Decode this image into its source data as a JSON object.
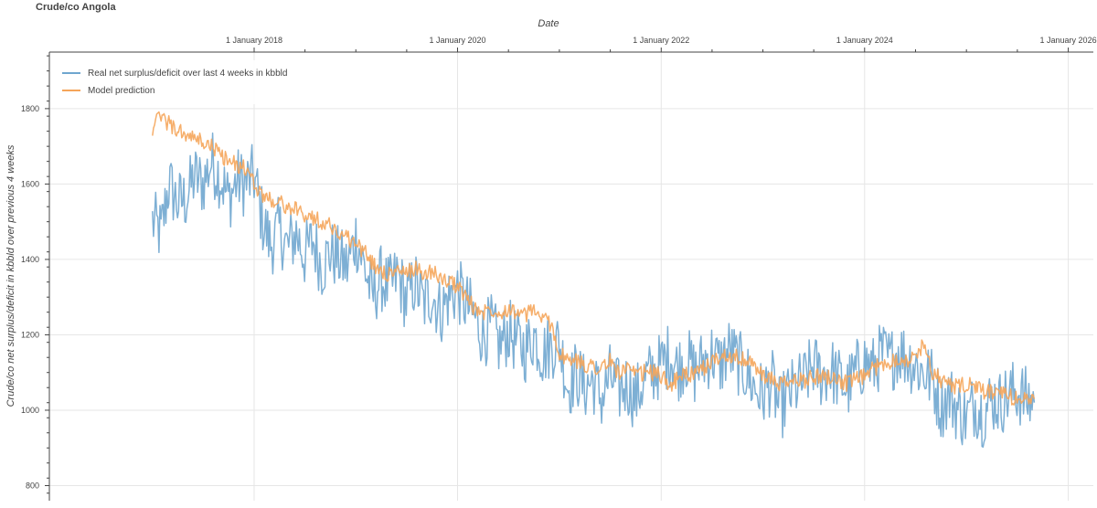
{
  "chart_data": {
    "type": "line",
    "title": "Crude/co Angola",
    "xlabel": "Date",
    "ylabel": "Crude/co net surplus/deficit in kbbld over previous 4 weeks",
    "x_axis_position": "top",
    "x_ticks": [
      {
        "date": "2018-01-01",
        "label": "1 January 2018"
      },
      {
        "date": "2020-01-01",
        "label": "1 January 2020"
      },
      {
        "date": "2022-01-01",
        "label": "1 January 2022"
      },
      {
        "date": "2024-01-01",
        "label": "1 January 2024"
      },
      {
        "date": "2026-01-01",
        "label": "1 January 2026"
      }
    ],
    "xlim": [
      "2015-12-28",
      "2026-04-01"
    ],
    "y_ticks": [
      800,
      1000,
      1200,
      1400,
      1600,
      1800
    ],
    "ylim": [
      760,
      1950
    ],
    "grid": true,
    "legend_position": "top-left",
    "series": [
      {
        "name": "Real net surplus/deficit over last 4 weeks in kbbld",
        "color": "#6fa6cf",
        "points": [
          [
            "2017-01-01",
            1500
          ],
          [
            "2017-02-01",
            1470
          ],
          [
            "2017-03-01",
            1600
          ],
          [
            "2017-04-01",
            1550
          ],
          [
            "2017-05-01",
            1560
          ],
          [
            "2017-06-01",
            1620
          ],
          [
            "2017-07-01",
            1600
          ],
          [
            "2017-08-01",
            1660
          ],
          [
            "2017-09-01",
            1620
          ],
          [
            "2017-10-01",
            1560
          ],
          [
            "2017-11-01",
            1610
          ],
          [
            "2017-12-01",
            1600
          ],
          [
            "2018-01-01",
            1620
          ],
          [
            "2018-02-01",
            1500
          ],
          [
            "2018-03-01",
            1440
          ],
          [
            "2018-04-01",
            1480
          ],
          [
            "2018-05-01",
            1430
          ],
          [
            "2018-06-01",
            1470
          ],
          [
            "2018-07-01",
            1410
          ],
          [
            "2018-08-01",
            1450
          ],
          [
            "2018-09-01",
            1380
          ],
          [
            "2018-10-01",
            1420
          ],
          [
            "2018-11-01",
            1400
          ],
          [
            "2018-12-01",
            1380
          ],
          [
            "2019-01-01",
            1460
          ],
          [
            "2019-02-01",
            1380
          ],
          [
            "2019-03-01",
            1300
          ],
          [
            "2019-04-01",
            1350
          ],
          [
            "2019-05-01",
            1320
          ],
          [
            "2019-06-01",
            1360
          ],
          [
            "2019-07-01",
            1290
          ],
          [
            "2019-08-01",
            1340
          ],
          [
            "2019-09-01",
            1280
          ],
          [
            "2019-10-01",
            1310
          ],
          [
            "2019-11-01",
            1260
          ],
          [
            "2019-12-01",
            1300
          ],
          [
            "2020-01-01",
            1320
          ],
          [
            "2020-02-01",
            1280
          ],
          [
            "2020-03-01",
            1250
          ],
          [
            "2020-04-01",
            1200
          ],
          [
            "2020-05-01",
            1220
          ],
          [
            "2020-06-01",
            1170
          ],
          [
            "2020-07-01",
            1210
          ],
          [
            "2020-08-01",
            1180
          ],
          [
            "2020-09-01",
            1160
          ],
          [
            "2020-10-01",
            1200
          ],
          [
            "2020-11-01",
            1150
          ],
          [
            "2020-12-01",
            1170
          ],
          [
            "2021-01-01",
            1180
          ],
          [
            "2021-02-01",
            1060
          ],
          [
            "2021-03-01",
            1100
          ],
          [
            "2021-04-01",
            1060
          ],
          [
            "2021-05-01",
            1080
          ],
          [
            "2021-06-01",
            1030
          ],
          [
            "2021-07-01",
            1090
          ],
          [
            "2021-08-01",
            1050
          ],
          [
            "2021-09-01",
            1070
          ],
          [
            "2021-10-01",
            1030
          ],
          [
            "2021-11-01",
            1080
          ],
          [
            "2021-12-01",
            1100
          ],
          [
            "2022-01-01",
            1120
          ],
          [
            "2022-02-01",
            1150
          ],
          [
            "2022-03-01",
            1110
          ],
          [
            "2022-04-01",
            1140
          ],
          [
            "2022-05-01",
            1100
          ],
          [
            "2022-06-01",
            1130
          ],
          [
            "2022-07-01",
            1150
          ],
          [
            "2022-08-01",
            1120
          ],
          [
            "2022-09-01",
            1160
          ],
          [
            "2022-10-01",
            1130
          ],
          [
            "2022-11-01",
            1100
          ],
          [
            "2022-12-01",
            1060
          ],
          [
            "2023-01-01",
            1040
          ],
          [
            "2023-02-01",
            1080
          ],
          [
            "2023-03-01",
            1000
          ],
          [
            "2023-04-01",
            1040
          ],
          [
            "2023-05-01",
            1060
          ],
          [
            "2023-06-01",
            1080
          ],
          [
            "2023-07-01",
            1120
          ],
          [
            "2023-08-01",
            1090
          ],
          [
            "2023-09-01",
            1110
          ],
          [
            "2023-10-01",
            1080
          ],
          [
            "2023-11-01",
            1060
          ],
          [
            "2023-12-01",
            1100
          ],
          [
            "2024-01-01",
            1130
          ],
          [
            "2024-02-01",
            1110
          ],
          [
            "2024-03-01",
            1150
          ],
          [
            "2024-04-01",
            1130
          ],
          [
            "2024-05-01",
            1160
          ],
          [
            "2024-06-01",
            1140
          ],
          [
            "2024-07-01",
            1120
          ],
          [
            "2024-08-01",
            1100
          ],
          [
            "2024-09-01",
            1080
          ],
          [
            "2024-10-01",
            1010
          ],
          [
            "2024-11-01",
            1040
          ],
          [
            "2024-12-01",
            1000
          ],
          [
            "2025-01-01",
            980
          ],
          [
            "2025-02-01",
            1020
          ],
          [
            "2025-03-01",
            990
          ],
          [
            "2025-04-01",
            1030
          ],
          [
            "2025-05-01",
            1020
          ],
          [
            "2025-06-01",
            1040
          ],
          [
            "2025-07-01",
            1050
          ],
          [
            "2025-08-01",
            1030
          ],
          [
            "2025-09-01",
            1020
          ]
        ],
        "noise_amplitude": 90
      },
      {
        "name": "Model prediction",
        "color": "#f5a55a",
        "points": [
          [
            "2017-01-01",
            1750
          ],
          [
            "2017-02-01",
            1780
          ],
          [
            "2017-03-01",
            1760
          ],
          [
            "2017-04-01",
            1740
          ],
          [
            "2017-05-01",
            1730
          ],
          [
            "2017-06-01",
            1720
          ],
          [
            "2017-07-01",
            1710
          ],
          [
            "2017-08-01",
            1700
          ],
          [
            "2017-09-01",
            1680
          ],
          [
            "2017-10-01",
            1660
          ],
          [
            "2017-11-01",
            1650
          ],
          [
            "2017-12-01",
            1640
          ],
          [
            "2018-01-01",
            1600
          ],
          [
            "2018-02-01",
            1570
          ],
          [
            "2018-03-01",
            1560
          ],
          [
            "2018-04-01",
            1550
          ],
          [
            "2018-05-01",
            1540
          ],
          [
            "2018-06-01",
            1530
          ],
          [
            "2018-07-01",
            1520
          ],
          [
            "2018-08-01",
            1510
          ],
          [
            "2018-09-01",
            1500
          ],
          [
            "2018-10-01",
            1490
          ],
          [
            "2018-11-01",
            1470
          ],
          [
            "2018-12-01",
            1460
          ],
          [
            "2019-01-01",
            1440
          ],
          [
            "2019-02-01",
            1420
          ],
          [
            "2019-03-01",
            1390
          ],
          [
            "2019-04-01",
            1370
          ],
          [
            "2019-05-01",
            1360
          ],
          [
            "2019-06-01",
            1370
          ],
          [
            "2019-07-01",
            1360
          ],
          [
            "2019-08-01",
            1380
          ],
          [
            "2019-09-01",
            1360
          ],
          [
            "2019-10-01",
            1370
          ],
          [
            "2019-11-01",
            1350
          ],
          [
            "2019-12-01",
            1340
          ],
          [
            "2020-01-01",
            1330
          ],
          [
            "2020-02-01",
            1300
          ],
          [
            "2020-03-01",
            1270
          ],
          [
            "2020-04-01",
            1260
          ],
          [
            "2020-05-01",
            1270
          ],
          [
            "2020-06-01",
            1260
          ],
          [
            "2020-07-01",
            1270
          ],
          [
            "2020-08-01",
            1260
          ],
          [
            "2020-09-01",
            1250
          ],
          [
            "2020-10-01",
            1270
          ],
          [
            "2020-11-01",
            1240
          ],
          [
            "2020-12-01",
            1230
          ],
          [
            "2021-01-01",
            1150
          ],
          [
            "2021-02-01",
            1130
          ],
          [
            "2021-03-01",
            1130
          ],
          [
            "2021-04-01",
            1120
          ],
          [
            "2021-05-01",
            1120
          ],
          [
            "2021-06-01",
            1110
          ],
          [
            "2021-07-01",
            1130
          ],
          [
            "2021-08-01",
            1100
          ],
          [
            "2021-09-01",
            1110
          ],
          [
            "2021-10-01",
            1090
          ],
          [
            "2021-11-01",
            1100
          ],
          [
            "2021-12-01",
            1100
          ],
          [
            "2022-01-01",
            1090
          ],
          [
            "2022-02-01",
            1070
          ],
          [
            "2022-03-01",
            1080
          ],
          [
            "2022-04-01",
            1100
          ],
          [
            "2022-05-01",
            1090
          ],
          [
            "2022-06-01",
            1110
          ],
          [
            "2022-07-01",
            1130
          ],
          [
            "2022-08-01",
            1140
          ],
          [
            "2022-09-01",
            1150
          ],
          [
            "2022-10-01",
            1140
          ],
          [
            "2022-11-01",
            1130
          ],
          [
            "2022-12-01",
            1120
          ],
          [
            "2023-01-01",
            1090
          ],
          [
            "2023-02-01",
            1080
          ],
          [
            "2023-03-01",
            1070
          ],
          [
            "2023-04-01",
            1070
          ],
          [
            "2023-05-01",
            1080
          ],
          [
            "2023-06-01",
            1080
          ],
          [
            "2023-07-01",
            1090
          ],
          [
            "2023-08-01",
            1090
          ],
          [
            "2023-09-01",
            1090
          ],
          [
            "2023-10-01",
            1080
          ],
          [
            "2023-11-01",
            1070
          ],
          [
            "2023-12-01",
            1080
          ],
          [
            "2024-01-01",
            1090
          ],
          [
            "2024-02-01",
            1110
          ],
          [
            "2024-03-01",
            1120
          ],
          [
            "2024-04-01",
            1130
          ],
          [
            "2024-05-01",
            1140
          ],
          [
            "2024-06-01",
            1130
          ],
          [
            "2024-07-01",
            1140
          ],
          [
            "2024-08-01",
            1180
          ],
          [
            "2024-09-01",
            1100
          ],
          [
            "2024-10-01",
            1080
          ],
          [
            "2024-11-01",
            1070
          ],
          [
            "2024-12-01",
            1060
          ],
          [
            "2025-01-01",
            1070
          ],
          [
            "2025-02-01",
            1060
          ],
          [
            "2025-03-01",
            1050
          ],
          [
            "2025-04-01",
            1050
          ],
          [
            "2025-05-01",
            1040
          ],
          [
            "2025-06-01",
            1040
          ],
          [
            "2025-07-01",
            1030
          ],
          [
            "2025-08-01",
            1030
          ],
          [
            "2025-09-01",
            1030
          ]
        ],
        "noise_amplitude": 22
      }
    ]
  }
}
